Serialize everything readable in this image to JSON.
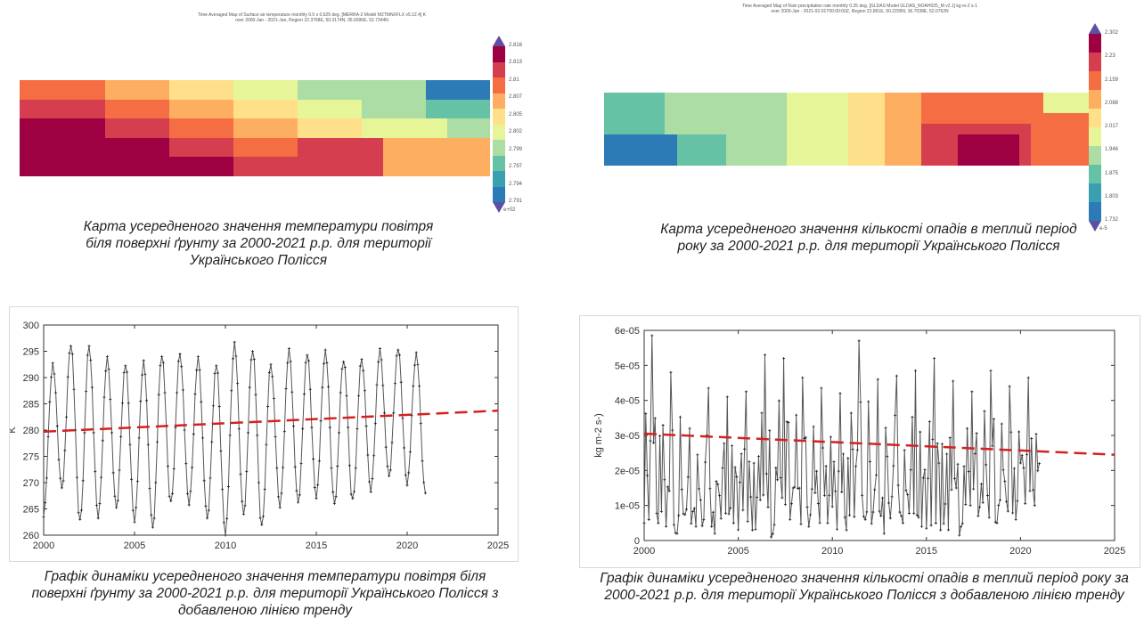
{
  "map1": {
    "title": "Time Averaged Map of Surface air temperature monthly 0.5 x 0.625 deg. [MERRA-2 Model M2TMNXFLX v5.12.4] K\nover 2000-Jan - 2021-Jan, Region 22.3768E, 50.3174N, 35.6096E, 52.7344N",
    "caption": "Карта усередненого значення температури повітря біля поверхні ґрунту за 2000-2021 р.р. для території Українського Полісся",
    "colorbar_ticks": [
      "2.816",
      "2.813",
      "2.81",
      "2.807",
      "2.805",
      "2.802",
      "2.799",
      "2.797",
      "2.794",
      "2.791"
    ],
    "colorbar_unit": "e+02"
  },
  "map2": {
    "title": "Time Averaged Map of Rain precipitation rate monthly 0.25 deg. [GLDAS Model GLDAS_NOAH025_M v2.1] kg m-2 s-1\nover 2000-Jan - 2021-02-01T00:00:00Z, Region 22.861E, 50.2295N, 36.7038E, 52.0752N",
    "caption": "Карта усередненого значення кількості опадів в теплий період року за 2000-2021 р.р. для території Українського Полісся",
    "colorbar_ticks": [
      "2.302",
      "2.23",
      "2.159",
      "2.088",
      "2.017",
      "1.946",
      "1.875",
      "1.803",
      "1.732"
    ],
    "colorbar_unit": "e-5"
  },
  "chart_data": [
    {
      "type": "line",
      "ylabel": "K",
      "xlim": [
        2000,
        2025
      ],
      "ylim": [
        260,
        300
      ],
      "xticks": [
        "2000",
        "2005",
        "2010",
        "2015",
        "2020",
        "2025"
      ],
      "yticks": [
        "260",
        "265",
        "270",
        "275",
        "280",
        "285",
        "290",
        "295",
        "300"
      ],
      "caption": "Графік динаміки усередненого значення температури повітря біля поверхні ґрунту за 2000-2021 р.р. для території Українського Полісся з добавленою лінією тренду",
      "trend": {
        "x": [
          2000,
          2025
        ],
        "y": [
          279.7,
          283.7
        ]
      },
      "series": [
        {
          "peaks": [
            292.5,
            296.5,
            296,
            293.5,
            292.5,
            293,
            294.5,
            294.5,
            293.5,
            292.5,
            296.5,
            295.5,
            292.5,
            295,
            294.5,
            295,
            293.5,
            293.5,
            295,
            295.5,
            294.5
          ],
          "troughs": [
            264,
            269,
            262.5,
            263.5,
            265,
            263,
            261.5,
            266,
            266,
            263,
            260.5,
            264,
            261.5,
            265.5,
            266,
            267.5,
            266,
            266.5,
            268.5,
            271,
            270,
            268
          ]
        }
      ]
    },
    {
      "type": "line",
      "ylabel": "kg m-2 s-)",
      "xlim": [
        2000,
        2025
      ],
      "ylim": [
        0,
        6e-05
      ],
      "xticks": [
        "2000",
        "2005",
        "2010",
        "2015",
        "2020",
        "2025"
      ],
      "yticks": [
        "0",
        "1e-05",
        "2e-05",
        "3e-05",
        "4e-05",
        "5e-05",
        "6e-05"
      ],
      "caption": "Графік динаміки усередненого значення кількості опадів в теплий період року за 2000-2021 р.р. для території Українського Полісся з добавленою лінією тренду",
      "trend": {
        "x": [
          2000,
          2025
        ],
        "y": [
          3.05e-05,
          2.45e-05
        ]
      },
      "series": [
        {
          "annual_max": [
            5.85e-05,
            4.8e-05,
            3.2e-05,
            4.35e-05,
            4.1e-05,
            4.25e-05,
            5.3e-05,
            5.2e-05,
            4.65e-05,
            4.35e-05,
            4.2e-05,
            5.7e-05,
            4.6e-05,
            4.7e-05,
            4.85e-05,
            5.2e-05,
            4.55e-05,
            4.25e-05,
            4.85e-05,
            4.4e-05,
            4.65e-05
          ],
          "annual_min": [
            5e-06,
            2e-06,
            4e-06,
            2e-06,
            5e-06,
            3e-06,
            1e-06,
            6e-06,
            4e-06,
            5e-06,
            3e-06,
            6e-06,
            2e-06,
            5e-06,
            4e-06,
            3e-06,
            1.5e-06,
            7e-06,
            5e-06,
            6e-06,
            1e-05
          ]
        }
      ]
    }
  ]
}
